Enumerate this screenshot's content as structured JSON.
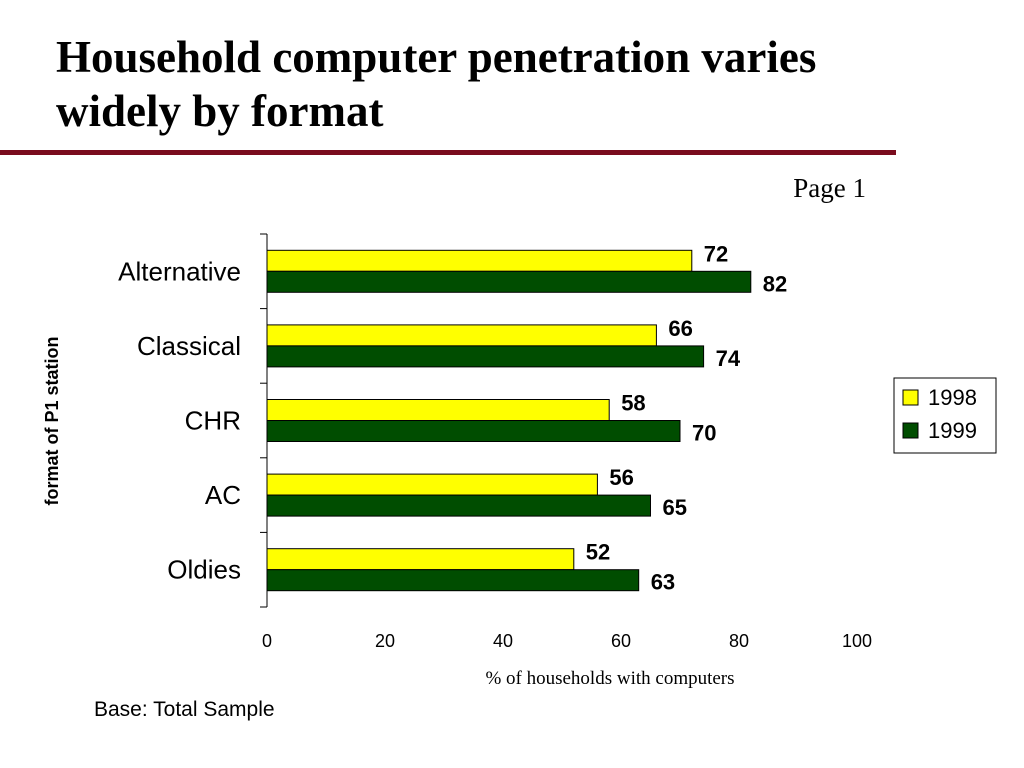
{
  "slide": {
    "title": "Household computer penetration varies widely by format",
    "page_label": "Page 1",
    "note": "Base: Total Sample"
  },
  "colors": {
    "series_1998": "#ffff00",
    "series_1999": "#004d00",
    "title_rule": "#7a0c1e"
  },
  "chart_data": {
    "type": "bar",
    "orientation": "horizontal",
    "categories": [
      "Alternative",
      "Classical",
      "CHR",
      "AC",
      "Oldies"
    ],
    "series": [
      {
        "name": "1998",
        "values": [
          72,
          66,
          58,
          56,
          52
        ]
      },
      {
        "name": "1999",
        "values": [
          82,
          74,
          70,
          65,
          63
        ]
      }
    ],
    "title": "",
    "xlabel": "% of households with computers",
    "ylabel": "format of P1 station",
    "xlim": [
      0,
      100
    ],
    "xticks": [
      "0",
      "20",
      "40",
      "60",
      "80",
      "100"
    ],
    "grid": false,
    "legend_position": "right"
  }
}
